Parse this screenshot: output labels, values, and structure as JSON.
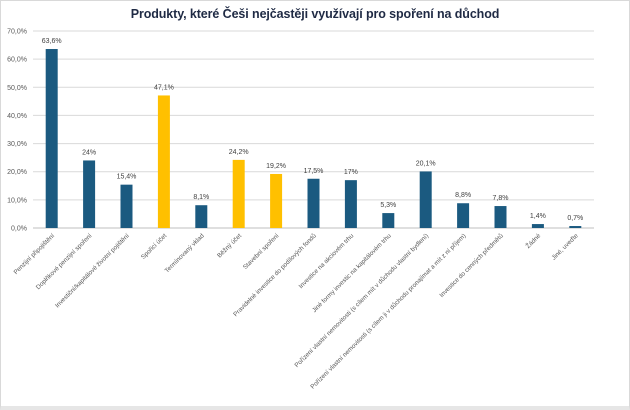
{
  "chart_data": {
    "type": "bar",
    "title": "Produkty, které Češi nejčastěji využívají pro  spoření na důchod",
    "xlabel": "",
    "ylabel": "",
    "ylim": [
      0,
      70
    ],
    "yticks": [
      "0,0%",
      "10,0%",
      "20,0%",
      "30,0%",
      "40,0%",
      "50,0%",
      "60,0%",
      "70,0%"
    ],
    "ytick_values": [
      0,
      10,
      20,
      30,
      40,
      50,
      60,
      70
    ],
    "grid": true,
    "legend": "none",
    "colors": {
      "primary": "#1b5a80",
      "highlight": "#ffc000"
    },
    "categories": [
      "Penzijní připojištění",
      "Doplňkové penzijní spoření",
      "Investiční/kapitálové životní pojištění",
      "Spořicí účet",
      "Termínovaný vklad",
      "Běžný účet",
      "Stavební spoření",
      "Pravidelné investice do podílových fondů",
      "Investice na akciovém trhu",
      "Jiné formy investic na kapitálovém trhu",
      "Pořízení vlastní nemovitosti (s cílem mít v důchodu vlastní bydlení)",
      "Pořízení vlastní nemovitosti (s cílem ji v důchodu pronajímat a mít z ní příjem)",
      "Investice do cenných předmětů",
      "Žádné",
      "Jiné, uveďte"
    ],
    "values": [
      63.6,
      24,
      15.4,
      47.1,
      8.1,
      24.2,
      19.2,
      17.5,
      17,
      5.3,
      20.1,
      8.8,
      7.8,
      1.4,
      0.7
    ],
    "data_labels": [
      "63,6%",
      "24%",
      "15,4%",
      "47,1%",
      "8,1%",
      "24,2%",
      "19,2%",
      "17,5%",
      "17%",
      "5,3%",
      "20,1%",
      "8,8%",
      "7,8%",
      "1,4%",
      "0,7%"
    ],
    "highlighted": [
      false,
      false,
      false,
      true,
      false,
      true,
      true,
      false,
      false,
      false,
      false,
      false,
      false,
      false,
      false
    ]
  }
}
